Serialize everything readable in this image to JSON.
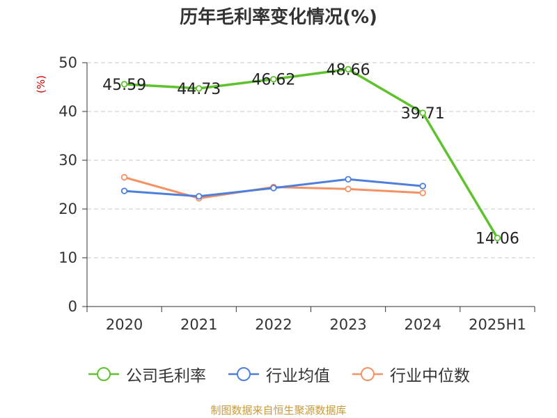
{
  "title": "历年毛利率变化情况(%)",
  "y_unit": "(%)",
  "source": "制图数据来自恒生聚源数据库",
  "chart_data": {
    "type": "line",
    "title": "历年毛利率变化情况(%)",
    "ylabel": "(%)",
    "xlabel": "",
    "categories": [
      "2020",
      "2021",
      "2022",
      "2023",
      "2024",
      "2025H1"
    ],
    "ylim": [
      0,
      50
    ],
    "yticks": [
      0,
      10,
      20,
      30,
      40,
      50
    ],
    "grid": true,
    "legend_position": "bottom",
    "series": [
      {
        "name": "公司毛利率",
        "color": "#5ec22e",
        "values": [
          45.59,
          44.73,
          46.62,
          48.66,
          39.71,
          14.06
        ],
        "labels": [
          "45.59",
          "44.73",
          "46.62",
          "48.66",
          "39.71",
          "14.06"
        ]
      },
      {
        "name": "行业均值",
        "color": "#4f7fdc",
        "values": [
          23.7,
          22.6,
          24.3,
          26.1,
          24.7,
          null
        ]
      },
      {
        "name": "行业中位数",
        "color": "#f59263",
        "values": [
          26.5,
          22.2,
          24.5,
          24.1,
          23.3,
          null
        ]
      }
    ]
  }
}
